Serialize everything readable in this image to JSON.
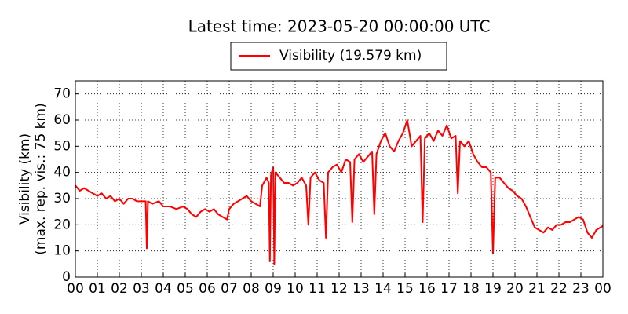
{
  "chart_data": {
    "type": "line",
    "title": "Latest time: 2023-05-20 00:00:00 UTC",
    "y_label_lines": [
      "Visibility (km)",
      "(max. rep. vis.: 75 km)"
    ],
    "x": [
      0,
      0.2,
      0.4,
      0.6,
      0.8,
      1.0,
      1.2,
      1.4,
      1.6,
      1.8,
      2.0,
      2.2,
      2.4,
      2.6,
      2.8,
      3.0,
      3.2,
      3.25,
      3.3,
      3.5,
      3.8,
      4.0,
      4.3,
      4.6,
      4.9,
      5.1,
      5.3,
      5.5,
      5.7,
      5.9,
      6.1,
      6.3,
      6.5,
      6.7,
      6.9,
      7.0,
      7.2,
      7.4,
      7.6,
      7.8,
      8.0,
      8.2,
      8.4,
      8.5,
      8.7,
      8.8,
      8.85,
      8.9,
      9.0,
      9.05,
      9.1,
      9.3,
      9.5,
      9.7,
      9.9,
      10.1,
      10.3,
      10.5,
      10.6,
      10.7,
      10.9,
      11.1,
      11.3,
      11.4,
      11.5,
      11.7,
      11.9,
      12.1,
      12.3,
      12.5,
      12.6,
      12.7,
      12.9,
      13.1,
      13.3,
      13.5,
      13.6,
      13.7,
      13.9,
      14.1,
      14.3,
      14.5,
      14.7,
      14.9,
      15.1,
      15.3,
      15.5,
      15.7,
      15.8,
      15.9,
      16.1,
      16.3,
      16.5,
      16.7,
      16.9,
      17.1,
      17.3,
      17.4,
      17.5,
      17.7,
      17.9,
      18.1,
      18.3,
      18.5,
      18.7,
      18.9,
      19.0,
      19.1,
      19.3,
      19.5,
      19.7,
      19.9,
      20.1,
      20.3,
      20.5,
      20.7,
      20.9,
      21.1,
      21.3,
      21.5,
      21.7,
      21.9,
      22.1,
      22.3,
      22.5,
      22.7,
      22.9,
      23.1,
      23.3,
      23.5,
      23.7,
      24.0
    ],
    "series": [
      {
        "name": "Visibility (19.579 km)",
        "color": "#ff0000",
        "values": [
          35,
          33,
          34,
          33,
          32,
          31,
          32,
          30,
          31,
          29,
          30,
          28,
          30,
          30,
          29,
          29,
          29,
          11,
          29,
          28,
          29,
          27,
          27,
          26,
          27,
          26,
          24,
          23,
          25,
          26,
          25,
          26,
          24,
          23,
          22,
          26,
          28,
          29,
          30,
          31,
          29,
          28,
          27,
          35,
          38,
          36,
          6,
          39,
          42,
          5,
          40,
          38,
          36,
          36,
          35,
          36,
          38,
          35,
          20,
          38,
          40,
          37,
          36,
          15,
          40,
          42,
          43,
          40,
          45,
          44,
          21,
          45,
          47,
          44,
          46,
          48,
          24,
          47,
          52,
          55,
          50,
          48,
          52,
          55,
          60,
          50,
          52,
          54,
          21,
          53,
          55,
          52,
          56,
          54,
          58,
          53,
          54,
          32,
          52,
          50,
          52,
          47,
          44,
          42,
          42,
          40,
          9,
          38,
          38,
          36,
          34,
          33,
          31,
          30,
          27,
          23,
          19,
          18,
          17,
          19,
          18,
          20,
          20,
          21,
          21,
          22,
          23,
          22,
          17,
          15,
          18,
          19.579
        ]
      }
    ],
    "xlim": [
      0,
      24
    ],
    "xticks": [
      {
        "value": 0,
        "label": "00"
      },
      {
        "value": 1,
        "label": "01"
      },
      {
        "value": 2,
        "label": "02"
      },
      {
        "value": 3,
        "label": "03"
      },
      {
        "value": 4,
        "label": "04"
      },
      {
        "value": 5,
        "label": "05"
      },
      {
        "value": 6,
        "label": "06"
      },
      {
        "value": 7,
        "label": "07"
      },
      {
        "value": 8,
        "label": "08"
      },
      {
        "value": 9,
        "label": "09"
      },
      {
        "value": 10,
        "label": "10"
      },
      {
        "value": 11,
        "label": "11"
      },
      {
        "value": 12,
        "label": "12"
      },
      {
        "value": 13,
        "label": "13"
      },
      {
        "value": 14,
        "label": "14"
      },
      {
        "value": 15,
        "label": "15"
      },
      {
        "value": 16,
        "label": "16"
      },
      {
        "value": 17,
        "label": "17"
      },
      {
        "value": 18,
        "label": "18"
      },
      {
        "value": 19,
        "label": "19"
      },
      {
        "value": 20,
        "label": "20"
      },
      {
        "value": 21,
        "label": "21"
      },
      {
        "value": 22,
        "label": "22"
      },
      {
        "value": 23,
        "label": "23"
      },
      {
        "value": 24,
        "label": "00"
      }
    ],
    "ylim": [
      0,
      75
    ],
    "yticks": [
      0,
      10,
      20,
      30,
      40,
      50,
      60,
      70
    ],
    "grid": true
  }
}
